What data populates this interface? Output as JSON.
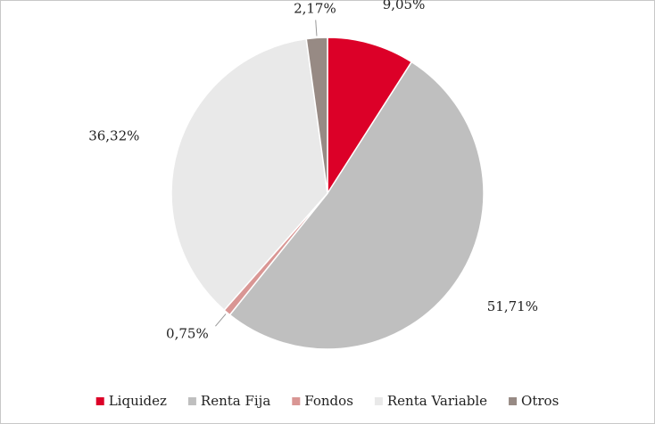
{
  "chart_data": {
    "type": "pie",
    "categories": [
      "Liquidez",
      "Renta Fija",
      "Fondos",
      "Renta Variable",
      "Otros"
    ],
    "values": [
      9.05,
      51.71,
      0.75,
      36.32,
      2.17
    ],
    "value_labels": [
      "9,05%",
      "51,71%",
      "0,75%",
      "36,32%",
      "2,17%"
    ],
    "colors": [
      "#dc0028",
      "#bfbfbf",
      "#d99694",
      "#e9e9e9",
      "#978a84"
    ],
    "legend": "bottom"
  }
}
